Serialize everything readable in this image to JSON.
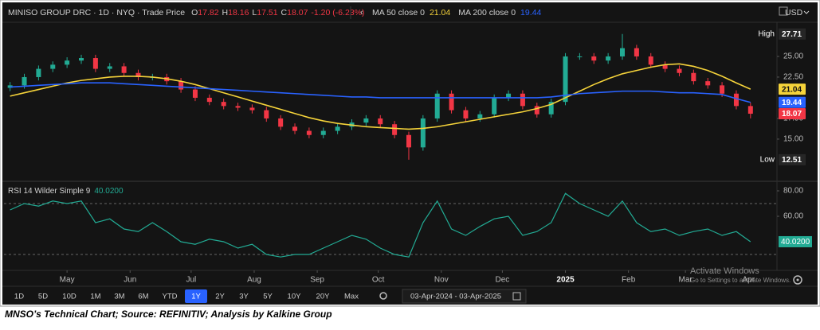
{
  "chart_data": [
    {
      "type": "candlestick",
      "title": "MINISO GROUP DRC · 1D · NYQ · Trade Price",
      "quote": [
        {
          "label": "O",
          "value": 17.82
        },
        {
          "label": "H",
          "value": 18.16
        },
        {
          "label": "L",
          "value": 17.51
        },
        {
          "label": "C",
          "value": 18.07
        }
      ],
      "change": "-1.20 (-6.23%)",
      "currency": "USD",
      "x": [
        0,
        7,
        14,
        21,
        28,
        35,
        42,
        49,
        56,
        63,
        70,
        77,
        84,
        91,
        98,
        105,
        112,
        119,
        126,
        133,
        140,
        147,
        154,
        161,
        168,
        175,
        182,
        189,
        196,
        203,
        210,
        217,
        224,
        231,
        238,
        245,
        252,
        259,
        266,
        273,
        280,
        287,
        294,
        301,
        308,
        315,
        322,
        329,
        336,
        343,
        350,
        357,
        364
      ],
      "xlim": [
        -3,
        377
      ],
      "xticks": [
        {
          "value": 28,
          "label": "May"
        },
        {
          "value": 59,
          "label": "Jun"
        },
        {
          "value": 89,
          "label": "Jul"
        },
        {
          "value": 120,
          "label": "Aug"
        },
        {
          "value": 151,
          "label": "Sep"
        },
        {
          "value": 181,
          "label": "Oct"
        },
        {
          "value": 212,
          "label": "Nov"
        },
        {
          "value": 242,
          "label": "Dec"
        },
        {
          "value": 273,
          "label": "2025"
        },
        {
          "value": 304,
          "label": "Feb"
        },
        {
          "value": 332,
          "label": "Mar"
        },
        {
          "value": 363,
          "label": "Apr"
        }
      ],
      "open": [
        21.2,
        21.5,
        22.5,
        23.5,
        24.0,
        24.5,
        24.8,
        23.5,
        23.8,
        23.0,
        22.5,
        22.5,
        22.0,
        21.0,
        20.0,
        19.5,
        19.0,
        18.8,
        18.5,
        17.5,
        16.5,
        16.0,
        15.5,
        16.0,
        16.5,
        17.0,
        17.5,
        16.8,
        15.5,
        14.0,
        17.5,
        20.5,
        18.5,
        17.5,
        18.0,
        20.0,
        20.5,
        19.0,
        18.0,
        19.5,
        25.0,
        25.0,
        24.5,
        25.0,
        26.0,
        25.0,
        24.0,
        23.5,
        23.0,
        22.0,
        21.5,
        20.5,
        19.0
      ],
      "high": [
        21.9,
        22.9,
        23.9,
        24.4,
        24.9,
        25.2,
        25.2,
        24.2,
        24.2,
        23.4,
        22.9,
        22.9,
        22.4,
        21.4,
        20.4,
        19.9,
        19.4,
        19.2,
        18.9,
        17.9,
        16.9,
        16.4,
        16.4,
        16.9,
        17.4,
        17.9,
        17.9,
        17.2,
        15.9,
        17.9,
        20.9,
        20.9,
        18.9,
        18.4,
        20.4,
        20.9,
        20.9,
        19.4,
        19.9,
        25.4,
        25.4,
        25.4,
        25.4,
        27.71,
        26.4,
        25.4,
        24.4,
        23.9,
        23.4,
        22.4,
        21.9,
        20.9,
        19.4
      ],
      "low": [
        20.8,
        21.1,
        22.1,
        23.1,
        23.6,
        24.1,
        23.1,
        23.1,
        22.6,
        22.1,
        22.1,
        21.6,
        20.6,
        19.6,
        19.1,
        18.6,
        18.4,
        18.1,
        17.1,
        16.1,
        15.6,
        15.1,
        15.1,
        15.6,
        16.1,
        16.6,
        16.4,
        15.1,
        12.51,
        13.6,
        17.1,
        18.1,
        17.1,
        17.1,
        17.6,
        19.6,
        18.6,
        17.6,
        17.6,
        19.1,
        24.6,
        24.1,
        24.1,
        24.6,
        24.6,
        23.6,
        23.1,
        22.6,
        21.6,
        21.1,
        20.1,
        18.6,
        17.51
      ],
      "close": [
        21.5,
        22.5,
        23.5,
        24.0,
        24.5,
        24.8,
        23.5,
        23.8,
        23.0,
        22.5,
        22.5,
        22.0,
        21.0,
        20.0,
        19.5,
        19.0,
        18.8,
        18.5,
        17.5,
        16.5,
        16.0,
        15.5,
        16.0,
        16.5,
        17.0,
        17.5,
        16.8,
        15.5,
        14.0,
        17.5,
        20.5,
        18.5,
        17.5,
        18.0,
        20.0,
        20.5,
        19.0,
        18.0,
        19.5,
        25.0,
        25.0,
        24.5,
        25.0,
        26.0,
        25.0,
        24.0,
        23.5,
        23.0,
        22.0,
        21.5,
        20.5,
        19.0,
        18.07
      ],
      "up_color": "#22ab94",
      "down_color": "#f23645",
      "series": [
        {
          "name": "MA 50 close 0",
          "color": "#f5d33a",
          "values": [
            20.2,
            20.6,
            21.0,
            21.4,
            21.8,
            22.1,
            22.3,
            22.5,
            22.6,
            22.6,
            22.5,
            22.3,
            22.0,
            21.6,
            21.1,
            20.6,
            20.1,
            19.6,
            19.1,
            18.6,
            18.1,
            17.6,
            17.2,
            16.9,
            16.7,
            16.5,
            16.4,
            16.3,
            16.2,
            16.3,
            16.5,
            16.8,
            17.1,
            17.4,
            17.7,
            18.0,
            18.3,
            18.7,
            19.2,
            20.0,
            20.8,
            21.6,
            22.3,
            22.9,
            23.3,
            23.7,
            24.0,
            24.1,
            23.8,
            23.3,
            22.6,
            21.8,
            21.04
          ]
        },
        {
          "name": "MA 200 close 0",
          "color": "#2962ff",
          "values": [
            21.3,
            21.4,
            21.5,
            21.6,
            21.7,
            21.8,
            21.8,
            21.8,
            21.7,
            21.6,
            21.5,
            21.4,
            21.3,
            21.2,
            21.1,
            21.0,
            20.9,
            20.8,
            20.7,
            20.6,
            20.5,
            20.4,
            20.3,
            20.2,
            20.1,
            20.1,
            20.0,
            20.0,
            20.0,
            20.0,
            20.0,
            20.0,
            20.0,
            20.0,
            20.0,
            20.0,
            20.0,
            20.0,
            20.1,
            20.3,
            20.5,
            20.6,
            20.7,
            20.8,
            20.8,
            20.8,
            20.7,
            20.6,
            20.6,
            20.5,
            20.4,
            19.9,
            19.44
          ]
        }
      ],
      "ylim": [
        9.9,
        29.13
      ],
      "yticks": [
        {
          "value": 15,
          "label": "15.00"
        },
        {
          "value": 17.5,
          "label": "17.50"
        },
        {
          "value": 22.5,
          "label": "22.50"
        },
        {
          "value": 25,
          "label": "25.00"
        }
      ],
      "high_marker": {
        "label": "High",
        "value": 27.71
      },
      "low_marker": {
        "label": "Low",
        "value": 12.51
      }
    },
    {
      "type": "line",
      "title": "RSI 14 Wilder Simple 9",
      "x": [
        0,
        7,
        14,
        21,
        28,
        35,
        42,
        49,
        56,
        63,
        70,
        77,
        84,
        91,
        98,
        105,
        112,
        119,
        126,
        133,
        140,
        147,
        154,
        161,
        168,
        175,
        182,
        189,
        196,
        203,
        210,
        217,
        224,
        231,
        238,
        245,
        252,
        259,
        266,
        273,
        280,
        287,
        294,
        301,
        308,
        315,
        322,
        329,
        336,
        343,
        350,
        357,
        364
      ],
      "xlim": [
        -3,
        377
      ],
      "values": [
        65,
        70,
        68,
        72,
        70,
        72,
        55,
        58,
        50,
        48,
        55,
        48,
        40,
        38,
        42,
        40,
        35,
        38,
        30,
        28,
        30,
        30,
        35,
        40,
        45,
        42,
        35,
        30,
        28,
        55,
        72,
        50,
        45,
        52,
        58,
        60,
        45,
        48,
        55,
        78,
        70,
        65,
        60,
        72,
        55,
        48,
        50,
        45,
        48,
        50,
        45,
        48,
        40.02
      ],
      "last_value_label": "40.0200",
      "color": "#22ab94",
      "ylim": [
        18.75,
        86.25
      ],
      "yticks": [
        {
          "value": 80,
          "label": "80.00"
        },
        {
          "value": 60,
          "label": "60.00"
        }
      ],
      "levels": [
        70,
        30
      ]
    }
  ],
  "toolbar": {
    "ranges": [
      "1D",
      "5D",
      "10D",
      "1M",
      "3M",
      "6M",
      "YTD",
      "1Y",
      "2Y",
      "3Y",
      "5Y",
      "10Y",
      "20Y",
      "Max"
    ],
    "selected": "1Y",
    "date_range": "03-Apr-2024 - 03-Apr-2025"
  },
  "watermark": [
    "Activate Windows",
    "Go to Settings to activate Windows."
  ],
  "caption": "MNSO’s Technical Chart; Source: REFINITIV; Analysis by Kalkine Group"
}
